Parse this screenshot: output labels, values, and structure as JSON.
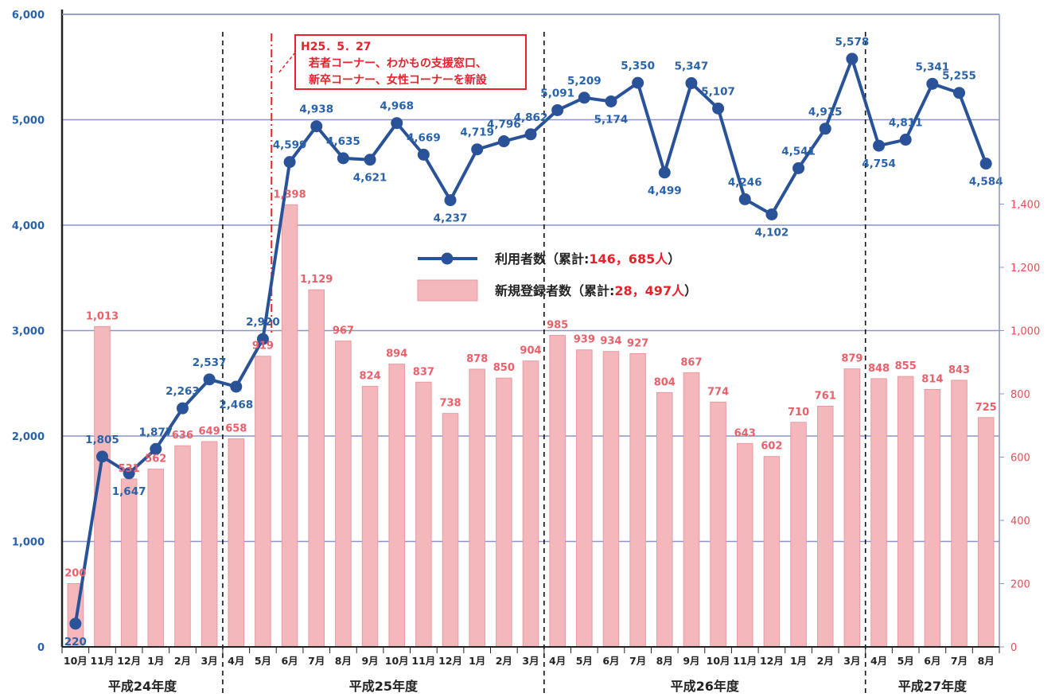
{
  "chart_data": {
    "type": "bar+line",
    "categories": [
      "10月",
      "11月",
      "12月",
      "1月",
      "2月",
      "3月",
      "4月",
      "5月",
      "6月",
      "7月",
      "8月",
      "9月",
      "10月",
      "11月",
      "12月",
      "1月",
      "2月",
      "3月",
      "4月",
      "5月",
      "6月",
      "7月",
      "8月",
      "9月",
      "10月",
      "11月",
      "12月",
      "1月",
      "2月",
      "3月",
      "4月",
      "5月",
      "6月",
      "7月",
      "8月"
    ],
    "fiscal_years": [
      {
        "label": "平成24年度",
        "start": 0,
        "end": 5
      },
      {
        "label": "平成25年度",
        "start": 6,
        "end": 17
      },
      {
        "label": "平成26年度",
        "start": 18,
        "end": 29
      },
      {
        "label": "平成27年度",
        "start": 30,
        "end": 34
      }
    ],
    "series": [
      {
        "name": "利用者数",
        "axis": "left",
        "kind": "line",
        "color": "#2a5298",
        "values": [
          220,
          1805,
          1647,
          1877,
          2263,
          2537,
          2468,
          2920,
          4599,
          4938,
          4635,
          4621,
          4968,
          4669,
          4237,
          4719,
          4796,
          4862,
          5091,
          5209,
          5174,
          5350,
          4499,
          5347,
          5107,
          4246,
          4102,
          4541,
          4915,
          5578,
          4754,
          4811,
          5341,
          5255,
          4584
        ],
        "labels": [
          "220",
          "1,805",
          "1,647",
          "1,877",
          "2,263",
          "2,537",
          "2,468",
          "2,920",
          "4,599",
          "4,938",
          "4,635",
          "4,621",
          "4,968",
          "4,669",
          "4,237",
          "4,719",
          "4,796",
          "4,862",
          "5,091",
          "5,209",
          "5,174",
          "5,350",
          "4,499",
          "5,347",
          "5,107",
          "4,246",
          "4,102",
          "4,541",
          "4,915",
          "5,578",
          "4,754",
          "4,811",
          "5,341",
          "5,255",
          "4,584"
        ]
      },
      {
        "name": "新規登録者数",
        "axis": "right",
        "kind": "bar",
        "color": "#f4b8bc",
        "values": [
          200,
          1013,
          531,
          562,
          636,
          649,
          658,
          919,
          1398,
          1129,
          967,
          824,
          894,
          837,
          738,
          878,
          850,
          904,
          985,
          939,
          934,
          927,
          804,
          867,
          774,
          643,
          602,
          710,
          761,
          879,
          848,
          855,
          814,
          843,
          725
        ],
        "labels": [
          "200",
          "1,013",
          "531",
          "562",
          "636",
          "649",
          "658",
          "919",
          "1,398",
          "1,129",
          "967",
          "824",
          "894",
          "837",
          "738",
          "878",
          "850",
          "904",
          "985",
          "939",
          "934",
          "927",
          "804",
          "867",
          "774",
          "643",
          "602",
          "710",
          "761",
          "879",
          "848",
          "855",
          "814",
          "843",
          "725"
        ]
      }
    ],
    "y_left": {
      "min": 0,
      "max": 6000,
      "ticks": [
        "0",
        "1,000",
        "2,000",
        "3,000",
        "4,000",
        "5,000",
        "6,000"
      ]
    },
    "y_right": {
      "min": 0,
      "max": 2000,
      "ticks": [
        "0",
        "200",
        "400",
        "600",
        "800",
        "1,000",
        "1,200",
        "1,400"
      ]
    },
    "legend": {
      "placement": "center",
      "items": [
        {
          "text": "利用者数（累計:",
          "value": "146，685人",
          "close": "）"
        },
        {
          "text": "新規登録者数（累計:",
          "value": "28，497人",
          "close": "）"
        }
      ]
    },
    "annotation": {
      "lines": [
        "H25．5．27",
        "若者コーナー、わかもの支援窓口、",
        "新卒コーナー、女性コーナーを新設"
      ],
      "color": "#e8202a",
      "at_category": 8
    },
    "grid": true
  }
}
